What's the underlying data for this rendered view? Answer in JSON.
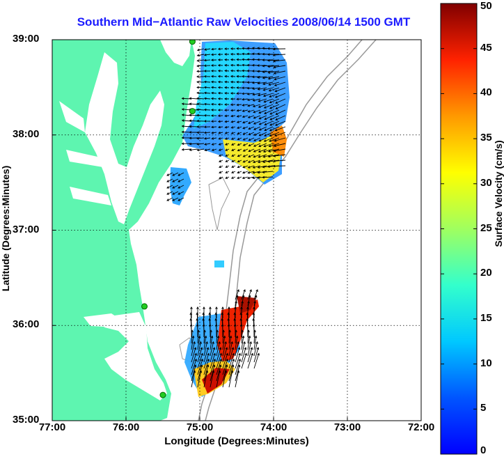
{
  "title": "Southern Mid−Atlantic Raw Velocities 2008/06/14 1500 GMT",
  "xlabel": "Longitude (Degrees:Minutes)",
  "ylabel": "Latitude (Degrees:Minutes)",
  "colorbar": {
    "label": "Surface Velocity (cm/s)",
    "min": 0,
    "max": 50,
    "ticks": [
      "0",
      "5",
      "10",
      "15",
      "20",
      "25",
      "30",
      "35",
      "40",
      "45",
      "50"
    ]
  },
  "map": {
    "lon_range": [
      -77,
      -72
    ],
    "lat_range": [
      35,
      39
    ],
    "x_ticks": [
      {
        "value": -77,
        "label": "77:00"
      },
      {
        "value": -76,
        "label": "76:00"
      },
      {
        "value": -75,
        "label": "75:00"
      },
      {
        "value": -74,
        "label": "74:00"
      },
      {
        "value": -73,
        "label": "73:00"
      },
      {
        "value": -72,
        "label": "72:00"
      }
    ],
    "y_ticks": [
      {
        "value": 39,
        "label": "39:00"
      },
      {
        "value": 38,
        "label": "38:00"
      },
      {
        "value": 37,
        "label": "37:00"
      },
      {
        "value": 36,
        "label": "36:00"
      },
      {
        "value": 35,
        "label": "35:00"
      }
    ],
    "land_color": "#5ef5b0",
    "grid": "dotted",
    "stations": [
      {
        "lon": -75.1,
        "lat": 38.98
      },
      {
        "lon": -75.1,
        "lat": 38.25
      },
      {
        "lon": -75.75,
        "lat": 36.2
      },
      {
        "lon": -75.5,
        "lat": 35.27
      }
    ]
  }
}
